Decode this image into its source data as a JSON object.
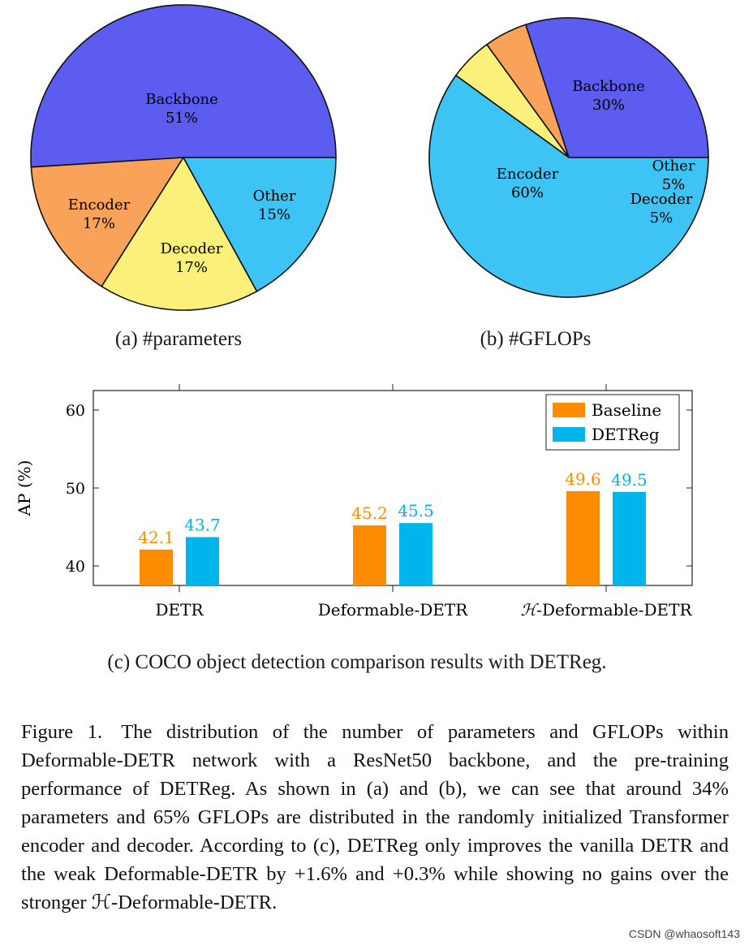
{
  "chart_data": [
    {
      "type": "pie",
      "caption": "(a) #parameters",
      "slices": [
        {
          "label": "Backbone",
          "value_label": "51%",
          "value": 51,
          "color": "#5c5cf0"
        },
        {
          "label": "Other",
          "value_label": "15%",
          "value": 15,
          "color": "#f9a35a"
        },
        {
          "label": "Decoder",
          "value_label": "17%",
          "value": 17,
          "color": "#fbf07a"
        },
        {
          "label": "Encoder",
          "value_label": "17%",
          "value": 17,
          "color": "#3ec4f4"
        }
      ]
    },
    {
      "type": "pie",
      "caption": "(b) #GFLOPs",
      "slices": [
        {
          "label": "Backbone",
          "value_label": "30%",
          "value": 30,
          "color": "#5c5cf0"
        },
        {
          "label": "Other",
          "value_label": "5%",
          "value": 5,
          "color": "#f9a35a"
        },
        {
          "label": "Decoder",
          "value_label": "5%",
          "value": 5,
          "color": "#fbf07a"
        },
        {
          "label": "Encoder",
          "value_label": "60%",
          "value": 60,
          "color": "#3ec4f4"
        }
      ]
    },
    {
      "type": "bar",
      "caption": "(c) COCO object detection comparison results with DETReg.",
      "categories": [
        "DETR",
        "Deformable-DETR",
        "H-Deformable-DETR"
      ],
      "category_prefix_script": "ℋ",
      "series": [
        {
          "name": "Baseline",
          "values": [
            42.1,
            45.2,
            49.6
          ],
          "color": "#fd8c00"
        },
        {
          "name": "DETReg",
          "values": [
            43.7,
            45.5,
            49.5
          ],
          "color": "#00b4ec"
        }
      ],
      "ylabel": "AP (%)",
      "ylim": [
        37.5,
        62.5
      ],
      "yticks": [
        40,
        50,
        60
      ],
      "legend": "top-right"
    }
  ],
  "figure_caption": {
    "label": "Figure 1.",
    "text": "The distribution of the number of parameters and GFLOPs within Deformable-DETR network with a ResNet50 backbone, and the pre-training performance of DETReg. As shown in (a) and (b), we can see that around 34% parameters and 65% GFLOPs are distributed in the randomly initialized Transformer encoder and decoder. According to (c), DETReg only improves the vanilla DETR and the weak Deformable-DETR by +1.6% and +0.3% while showing no gains over the stronger ℋ-Deformable-DETR."
  },
  "watermark": "CSDN @whaosoft143"
}
